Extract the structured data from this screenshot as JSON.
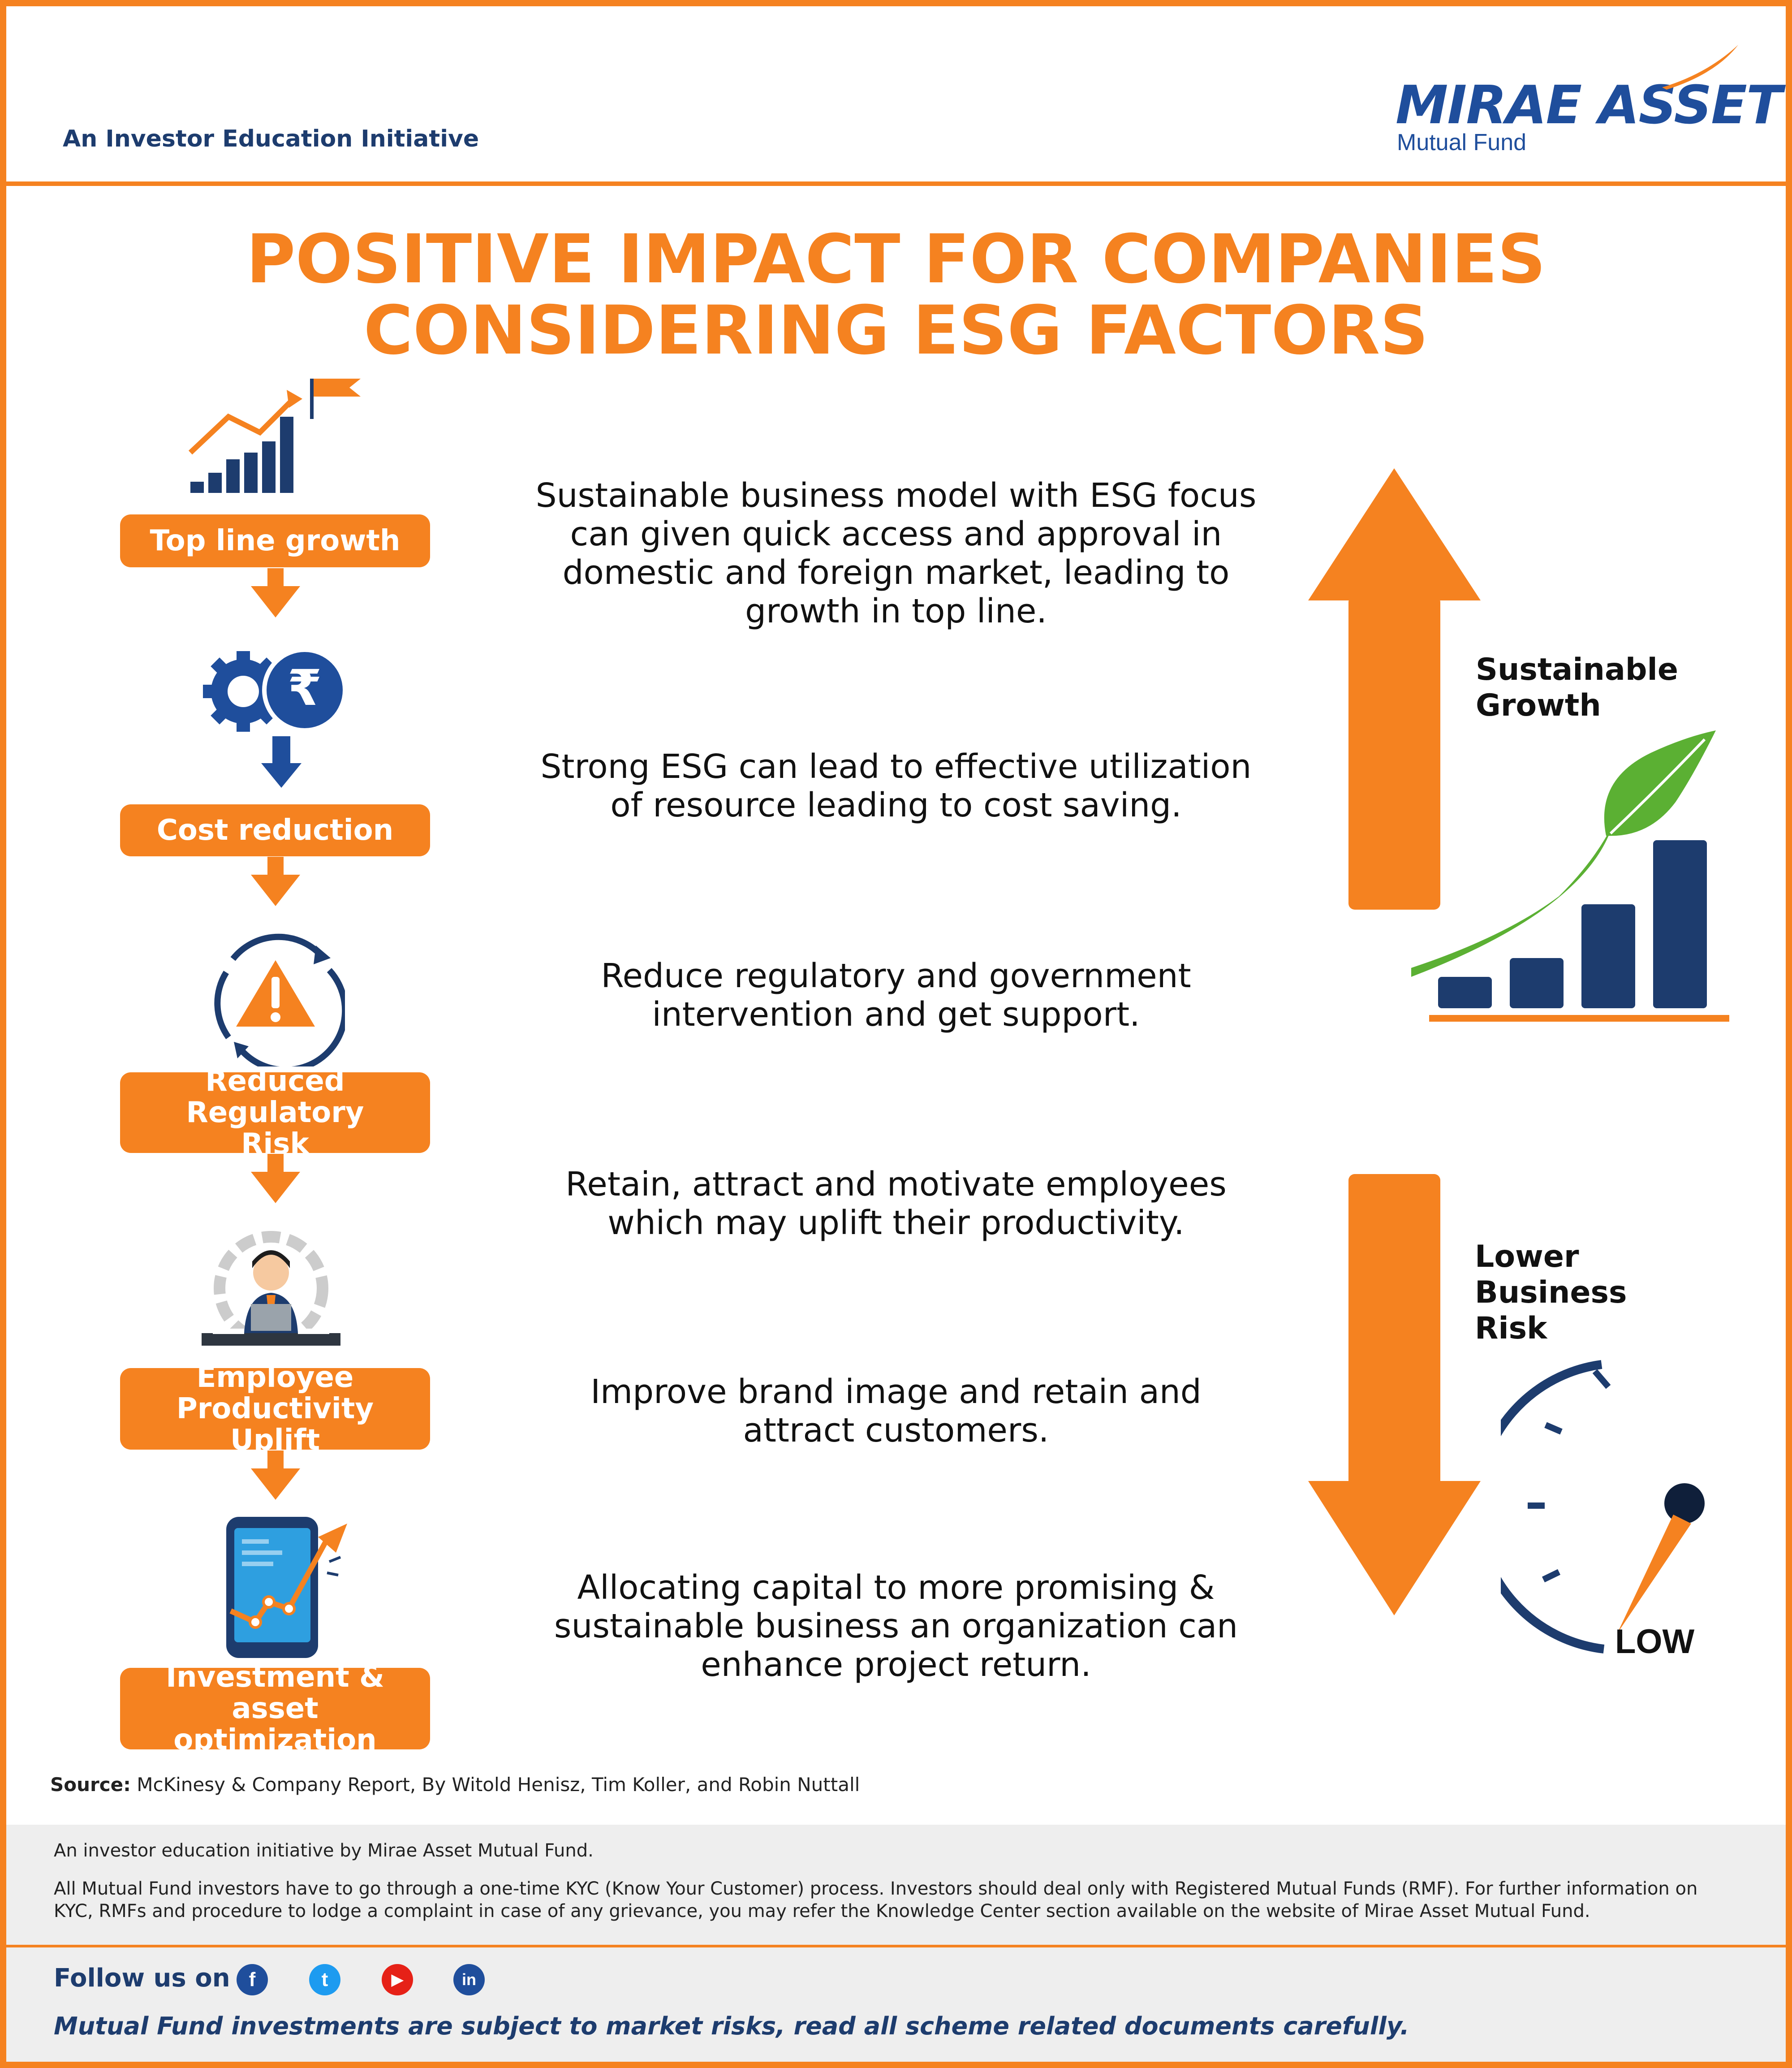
{
  "header": {
    "tagline": "An Investor Education Initiative",
    "logo_main": "MIRAE ASSET",
    "logo_sub": "Mutual Fund"
  },
  "title": {
    "line1": "POSITIVE IMPACT FOR COMPANIES",
    "line2": "CONSIDERING ESG FACTORS"
  },
  "steps": [
    {
      "label": "Top line growth",
      "icon": "growth-chart-flag-icon"
    },
    {
      "label": "Cost reduction",
      "icon": "gear-rupee-icon"
    },
    {
      "label_line1": "Reduced Regulatory",
      "label_line2": "Risk",
      "icon": "warning-cycle-icon"
    },
    {
      "label_line1": "Employee",
      "label_line2": "Productivity Uplift",
      "icon": "employee-desk-icon"
    },
    {
      "label_line1": "Investment & asset",
      "label_line2": "optimization",
      "icon": "phone-chart-icon"
    }
  ],
  "descriptions": [
    {
      "l1": "Sustainable business model with ESG focus",
      "l2": "can given quick access and approval in",
      "l3": "domestic and foreign market, leading to",
      "l4": "growth in top line."
    },
    {
      "l1": "Strong ESG can lead to effective utilization",
      "l2": "of resource leading to cost saving."
    },
    {
      "l1": "Reduce regulatory and government",
      "l2": "intervention and get support."
    },
    {
      "l1": "Retain, attract and motivate employees",
      "l2": "which may uplift their productivity."
    },
    {
      "l1": "Improve brand image and retain and",
      "l2": "attract customers."
    },
    {
      "l1": "Allocating capital to more promising &",
      "l2": "sustainable  business an organization can",
      "l3": "enhance  project return."
    }
  ],
  "right_panel": {
    "growth_line1": "Sustainable",
    "growth_line2": "Growth",
    "risk_line1": "Lower",
    "risk_line2": "Business",
    "risk_line3": "Risk",
    "gauge_label": "LOW"
  },
  "source": {
    "label": "Source:",
    "text": " McKinesy & Company Report, By Witold Henisz, Tim Koller, and Robin Nuttall"
  },
  "footer": {
    "line1": "An investor education initiative by Mirae Asset Mutual Fund.",
    "line2": "All Mutual Fund investors have to go through a one-time KYC (Know Your Customer) process. Investors should deal only with Registered Mutual Funds (RMF). For further information on",
    "line3": "KYC, RMFs and procedure to lodge a complaint in case of any grievance, you may refer the Knowledge Center section available on the website of Mirae Asset Mutual Fund.",
    "follow": "Follow us on",
    "social": [
      {
        "name": "facebook-icon",
        "glyph": "f",
        "color": "#1f4e9c"
      },
      {
        "name": "twitter-icon",
        "glyph": "t",
        "color": "#1d9bf0"
      },
      {
        "name": "youtube-icon",
        "glyph": "▶",
        "color": "#e62117"
      },
      {
        "name": "linkedin-icon",
        "glyph": "in",
        "color": "#1f4e9c"
      }
    ],
    "disclaimer": "Mutual Fund investments are subject to market risks, read all scheme related documents carefully."
  },
  "colors": {
    "orange": "#f58220",
    "navy": "#1d3c6e",
    "green": "#5bb033"
  }
}
